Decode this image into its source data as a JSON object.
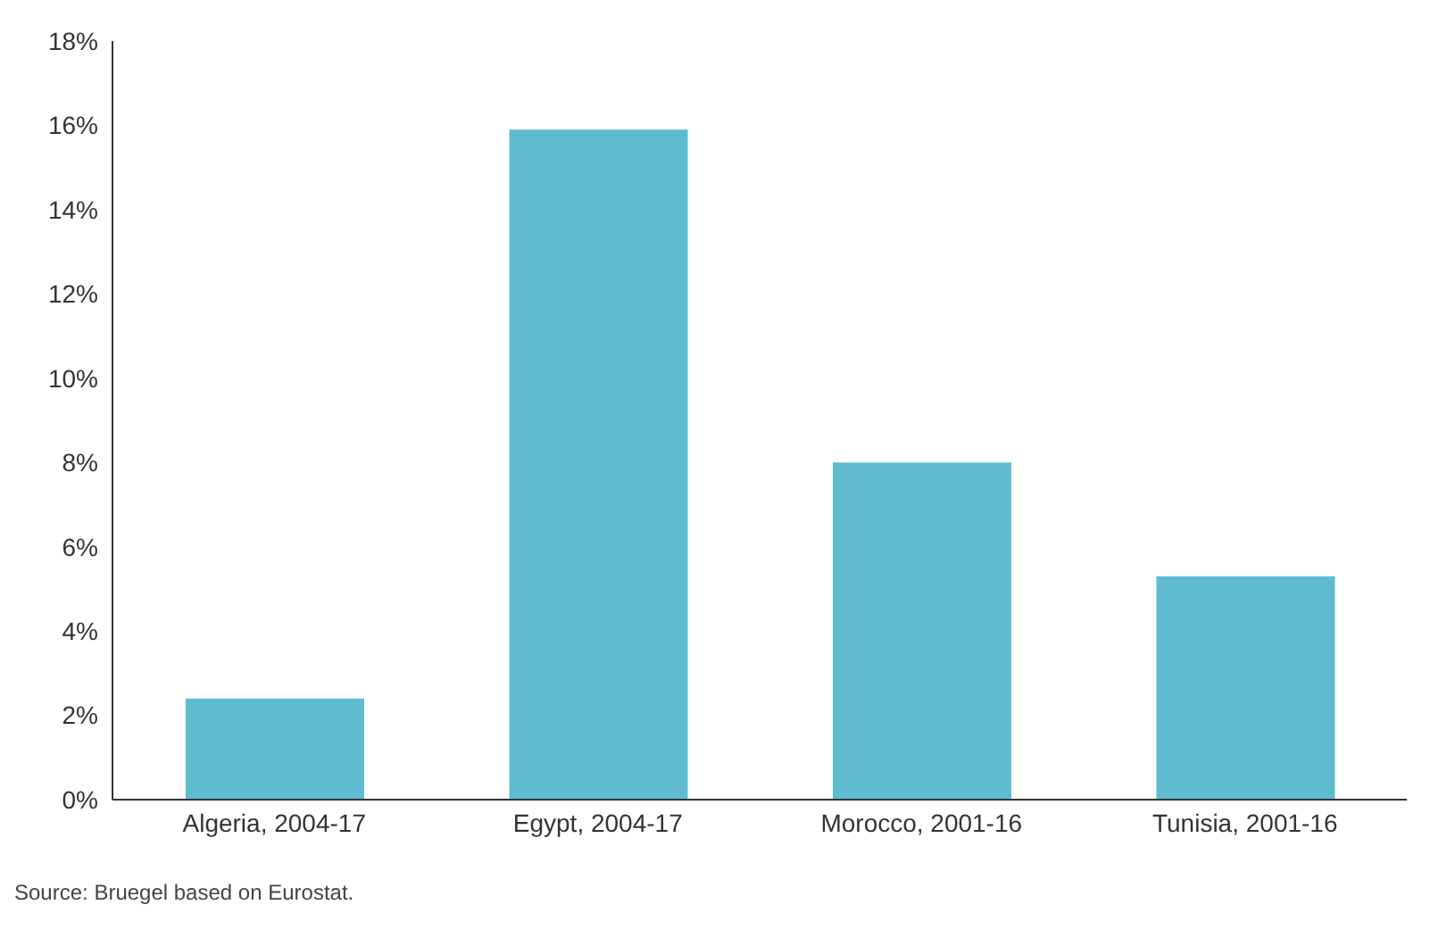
{
  "chart_data": {
    "type": "bar",
    "categories": [
      "Algeria, 2004-17",
      "Egypt, 2004-17",
      "Morocco, 2001-16",
      "Tunisia, 2001-16"
    ],
    "values": [
      2.4,
      15.9,
      8.0,
      5.3
    ],
    "color": "#5ebbd0",
    "ylim": [
      0,
      18
    ],
    "yticks": [
      {
        "value": 0,
        "label": "0%"
      },
      {
        "value": 2,
        "label": "2%"
      },
      {
        "value": 4,
        "label": "4%"
      },
      {
        "value": 6,
        "label": "6%"
      },
      {
        "value": 8,
        "label": "8%"
      },
      {
        "value": 10,
        "label": "10%"
      },
      {
        "value": 12,
        "label": "12%"
      },
      {
        "value": 14,
        "label": "14%"
      },
      {
        "value": 16,
        "label": "16%"
      },
      {
        "value": 18,
        "label": "18%"
      }
    ],
    "grid": false,
    "annotations": [
      "Source: Bruegel based on Eurostat."
    ]
  }
}
